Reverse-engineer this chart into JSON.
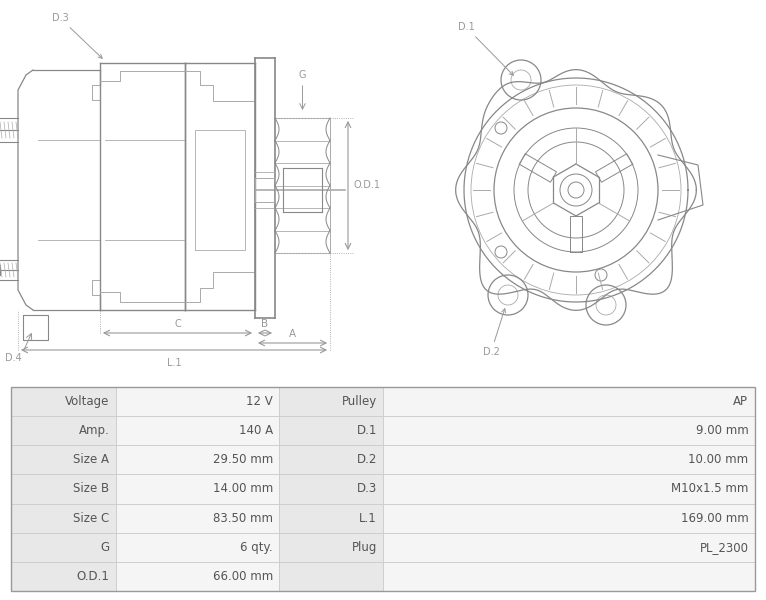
{
  "table_rows": [
    [
      "Voltage",
      "12 V",
      "Pulley",
      "AP"
    ],
    [
      "Amp.",
      "140 A",
      "D.1",
      "9.00 mm"
    ],
    [
      "Size A",
      "29.50 mm",
      "D.2",
      "10.00 mm"
    ],
    [
      "Size B",
      "14.00 mm",
      "D.3",
      "M10x1.5 mm"
    ],
    [
      "Size C",
      "83.50 mm",
      "L.1",
      "169.00 mm"
    ],
    [
      "G",
      "6 qty.",
      "Plug",
      "PL_2300"
    ],
    [
      "O.D.1",
      "66.00 mm",
      "",
      ""
    ]
  ],
  "bg_color": "#ffffff",
  "label_bg": "#e8e8e8",
  "value_bg": "#f5f5f5",
  "border_color": "#cccccc",
  "text_color": "#555555",
  "draw_color": "#888888",
  "draw_color_light": "#aaaaaa",
  "draw_color_dim": "#999999"
}
